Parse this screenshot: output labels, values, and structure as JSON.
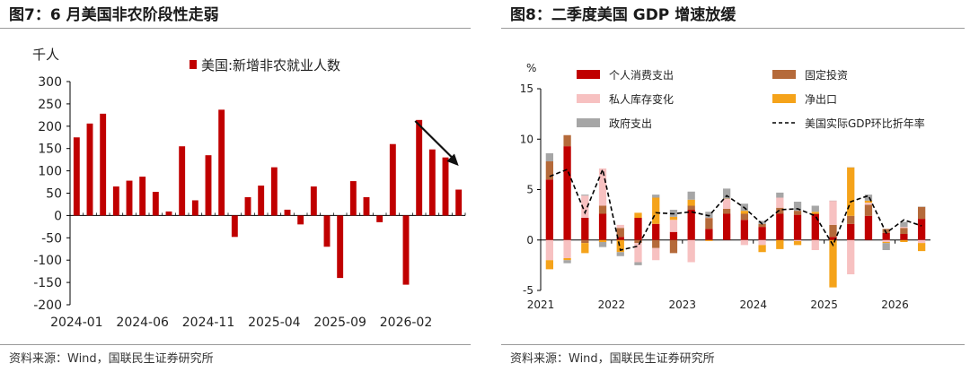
{
  "left": {
    "title": "图7：6 月美国非农阶段性走弱",
    "source": "资料来源：Wind，国联民生证券研究所",
    "chart_data": {
      "type": "bar",
      "ylabel": "千人",
      "legend_label": "美国:新增非农就业人数",
      "legend_position": "top-center",
      "bar_color": "#c00000",
      "ylim": [
        -200,
        300
      ],
      "yticks": [
        "300",
        "250",
        "200",
        "150",
        "100",
        "50",
        "0",
        "-50",
        "-100",
        "-150",
        "-200"
      ],
      "xtick_labels": [
        "2024-01",
        "2024-06",
        "2024-11",
        "2025-04",
        "2025-09",
        "2026-02"
      ],
      "categories": [
        "2024-01",
        "2024-02",
        "2024-03",
        "2024-04",
        "2024-05",
        "2024-06",
        "2024-07",
        "2024-08",
        "2024-09",
        "2024-10",
        "2024-11",
        "2024-12",
        "2025-01",
        "2025-02",
        "2025-03",
        "2025-04",
        "2025-05",
        "2025-06",
        "2025-07",
        "2025-08",
        "2025-09",
        "2025-10",
        "2025-11",
        "2025-12",
        "2026-01",
        "2026-02",
        "2026-03",
        "2026-04",
        "2026-05",
        "2026-06"
      ],
      "values": [
        175,
        206,
        228,
        65,
        78,
        87,
        53,
        9,
        155,
        34,
        135,
        237,
        -48,
        41,
        67,
        108,
        13,
        -20,
        65,
        -70,
        -140,
        77,
        41,
        -15,
        160,
        -155,
        214,
        148,
        130,
        58
      ],
      "annotation": "downward-arrow",
      "grid": false
    }
  },
  "right": {
    "title": "图8：二季度美国 GDP 增速放缓",
    "source": "资料来源：Wind，国联民生证券研究所",
    "chart_data": {
      "type": "bar",
      "stacked": true,
      "ylabel": "%",
      "ylim": [
        -5,
        15
      ],
      "yticks": [
        "15",
        "10",
        "5",
        "0",
        "-5"
      ],
      "xtick_labels": [
        "2021",
        "2022",
        "2023",
        "2024",
        "2025",
        "2026"
      ],
      "categories": [
        "2021Q1",
        "2021Q2",
        "2021Q3",
        "2021Q4",
        "2022Q1",
        "2022Q2",
        "2022Q3",
        "2022Q4",
        "2023Q1",
        "2023Q2",
        "2023Q3",
        "2023Q4",
        "2024Q1",
        "2024Q2",
        "2024Q3",
        "2024Q4",
        "2025Q1",
        "2025Q2",
        "2025Q3",
        "2025Q4",
        "2026Q1",
        "2026Q2"
      ],
      "series": [
        {
          "name": "个人消费支出",
          "color": "#c00000",
          "values": [
            6.0,
            9.3,
            2.2,
            2.6,
            0.3,
            2.2,
            1.6,
            0.8,
            3.0,
            1.1,
            2.6,
            2.0,
            1.3,
            2.6,
            2.5,
            2.6,
            0.3,
            1.6,
            2.4,
            0.7,
            0.6,
            2.1
          ]
        },
        {
          "name": "固定投资",
          "color": "#b56a3a",
          "values": [
            1.8,
            1.1,
            -0.3,
            0.8,
            0.9,
            -0.3,
            -0.8,
            -1.3,
            0.4,
            1.1,
            0.5,
            0.6,
            0.3,
            0.6,
            0.4,
            0.0,
            1.2,
            0.8,
            1.1,
            0.4,
            0.6,
            1.2
          ]
        },
        {
          "name": "私人库存变化",
          "color": "#f7c1c1",
          "values": [
            -2.0,
            -1.8,
            2.2,
            3.7,
            0.3,
            -1.9,
            -1.2,
            1.2,
            -2.2,
            0.0,
            1.0,
            -0.5,
            -0.5,
            1.0,
            -0.1,
            -1.0,
            2.4,
            -3.4,
            0.2,
            -0.2,
            0.1,
            -0.3
          ]
        },
        {
          "name": "净出口",
          "color": "#f5a31a",
          "values": [
            -0.9,
            -0.2,
            -1.0,
            -0.2,
            -1.2,
            0.5,
            2.6,
            0.3,
            0.6,
            -0.1,
            0.0,
            0.3,
            -0.7,
            -0.9,
            -0.4,
            0.2,
            -4.7,
            4.8,
            0.2,
            -0.1,
            -0.2,
            -0.8
          ]
        },
        {
          "name": "政府支出",
          "color": "#a6a6a6",
          "values": [
            0.8,
            -0.3,
            0.1,
            -0.5,
            -0.4,
            -0.3,
            0.3,
            0.7,
            0.8,
            0.6,
            1.0,
            0.7,
            0.3,
            0.5,
            0.9,
            0.6,
            0.0,
            0.0,
            0.6,
            -0.7,
            0.5,
            0.0
          ]
        }
      ],
      "line": {
        "name": "美国实际GDP环比折年率",
        "style": "dashed",
        "color": "#000000",
        "values": [
          6.3,
          7.0,
          2.7,
          7.0,
          -1.0,
          -0.6,
          2.7,
          2.6,
          2.8,
          2.4,
          4.4,
          3.2,
          1.6,
          3.0,
          3.1,
          2.4,
          -0.5,
          3.8,
          4.4,
          0.7,
          2.0,
          1.4
        ]
      },
      "legend_position": "top",
      "grid": false
    }
  }
}
